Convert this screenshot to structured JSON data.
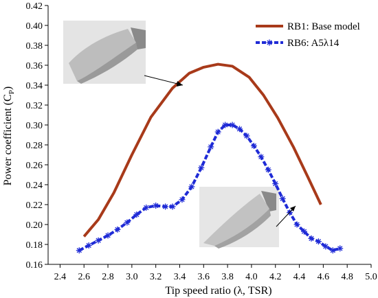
{
  "chart_data": {
    "type": "line",
    "xlabel": "Tip speed ratio (λ, TSR)",
    "ylabel": "Power coefficient (C",
    "ylabel_sub": "P",
    "ylabel_close": ")",
    "xlim": [
      2.3,
      5.0
    ],
    "ylim": [
      0.16,
      0.42
    ],
    "xticks": [
      "2.4",
      "2.6",
      "2.8",
      "3.0",
      "3.2",
      "3.4",
      "3.6",
      "3.8",
      "4.0",
      "4.2",
      "4.4",
      "4.6",
      "4.8",
      "5.0"
    ],
    "yticks": [
      "0.16",
      "0.18",
      "0.20",
      "0.22",
      "0.24",
      "0.26",
      "0.28",
      "0.30",
      "0.32",
      "0.34",
      "0.36",
      "0.38",
      "0.40",
      "0.42"
    ],
    "grid": false,
    "legend_position": "top-right",
    "series": [
      {
        "name": "RB1: Base model",
        "color": "#a83a1a",
        "style": "solid",
        "x": [
          2.6,
          2.72,
          2.85,
          3.0,
          3.16,
          3.34,
          3.48,
          3.6,
          3.72,
          3.84,
          3.98,
          4.1,
          4.22,
          4.35,
          4.47,
          4.58
        ],
        "y": [
          0.188,
          0.205,
          0.232,
          0.27,
          0.308,
          0.337,
          0.352,
          0.358,
          0.361,
          0.359,
          0.348,
          0.33,
          0.307,
          0.278,
          0.248,
          0.22
        ]
      },
      {
        "name": "RB6: A5λ14",
        "color": "#1f2bd6",
        "style": "dashed",
        "marker": "star",
        "x": [
          2.56,
          2.64,
          2.72,
          2.8,
          2.88,
          2.96,
          3.04,
          3.12,
          3.2,
          3.28,
          3.34,
          3.42,
          3.5,
          3.58,
          3.66,
          3.72,
          3.78,
          3.84,
          3.9,
          3.96,
          4.02,
          4.08,
          4.14,
          4.2,
          4.26,
          4.32,
          4.38,
          4.44,
          4.5,
          4.56,
          4.62,
          4.68,
          4.74
        ],
        "y": [
          0.174,
          0.179,
          0.184,
          0.189,
          0.195,
          0.202,
          0.21,
          0.217,
          0.219,
          0.218,
          0.218,
          0.225,
          0.238,
          0.257,
          0.278,
          0.293,
          0.3,
          0.3,
          0.296,
          0.289,
          0.279,
          0.268,
          0.255,
          0.241,
          0.226,
          0.212,
          0.2,
          0.193,
          0.186,
          0.183,
          0.178,
          0.174,
          0.176
        ]
      }
    ]
  }
}
